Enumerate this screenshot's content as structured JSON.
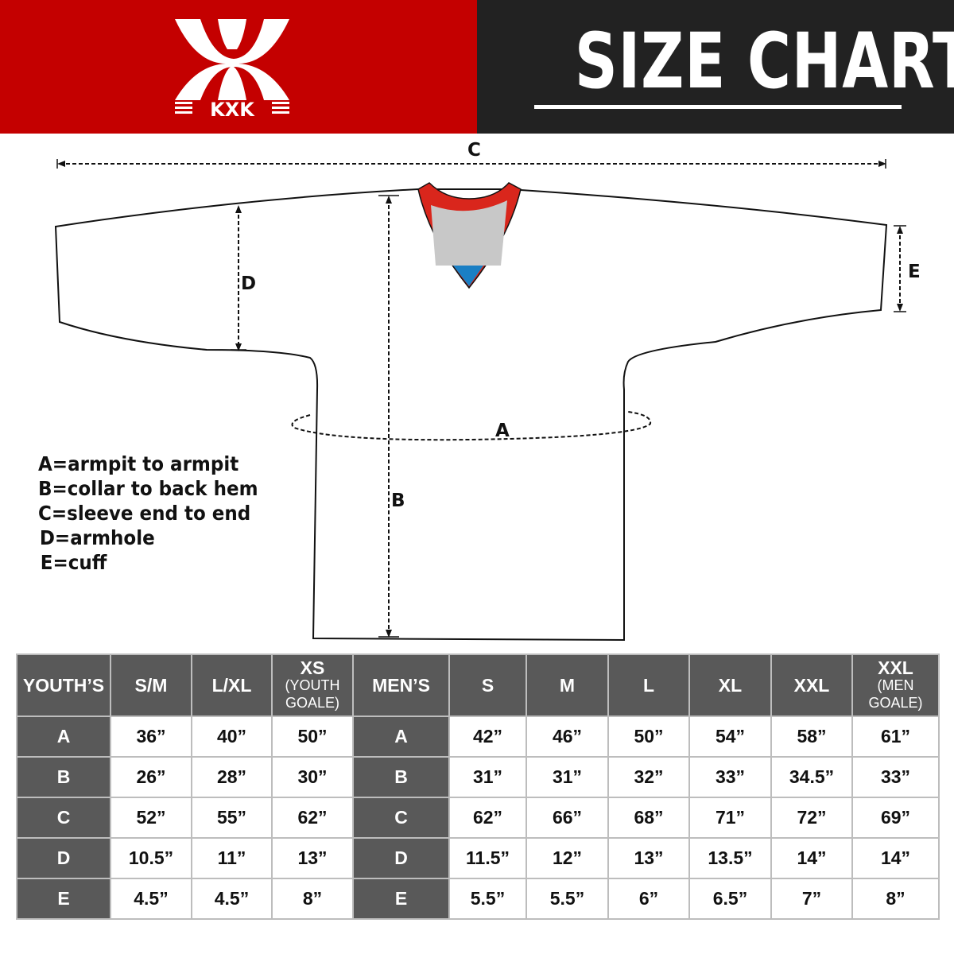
{
  "brand": {
    "logo_text": "KXK",
    "colors": {
      "red": "#c40000",
      "dark": "#222222",
      "table_header": "#595959"
    }
  },
  "header": {
    "title": "SIZE CHART"
  },
  "diagram": {
    "labels": {
      "a": "A",
      "b": "B",
      "c": "C",
      "d": "D",
      "e": "E"
    },
    "legend": [
      "A=armpit to armpit",
      "B=collar to back hem",
      "C=sleeve end to end",
      "D=armhole",
      "E=cuff"
    ]
  },
  "table": {
    "headers": [
      {
        "main": "YOUTH’S",
        "sub": ""
      },
      {
        "main": "S/M",
        "sub": ""
      },
      {
        "main": "L/XL",
        "sub": ""
      },
      {
        "main": "XS",
        "sub": "(YOUTH GOALE)"
      },
      {
        "main": "MEN’S",
        "sub": ""
      },
      {
        "main": "S",
        "sub": ""
      },
      {
        "main": "M",
        "sub": ""
      },
      {
        "main": "L",
        "sub": ""
      },
      {
        "main": "XL",
        "sub": ""
      },
      {
        "main": "XXL",
        "sub": ""
      },
      {
        "main": "XXL",
        "sub": "(MEN GOALE)"
      }
    ],
    "rows": [
      [
        "A",
        "36”",
        "40”",
        "50”",
        "A",
        "42”",
        "46”",
        "50”",
        "54”",
        "58”",
        "61”"
      ],
      [
        "B",
        "26”",
        "28”",
        "30”",
        "B",
        "31”",
        "31”",
        "32”",
        "33”",
        "34.5”",
        "33”"
      ],
      [
        "C",
        "52”",
        "55”",
        "62”",
        "C",
        "62”",
        "66”",
        "68”",
        "71”",
        "72”",
        "69”"
      ],
      [
        "D",
        "10.5”",
        "11”",
        "13”",
        "D",
        "11.5”",
        "12”",
        "13”",
        "13.5”",
        "14”",
        "14”"
      ],
      [
        "E",
        "4.5”",
        "4.5”",
        "8”",
        "E",
        "5.5”",
        "5.5”",
        "6”",
        "6.5”",
        "7”",
        "8”"
      ]
    ]
  }
}
